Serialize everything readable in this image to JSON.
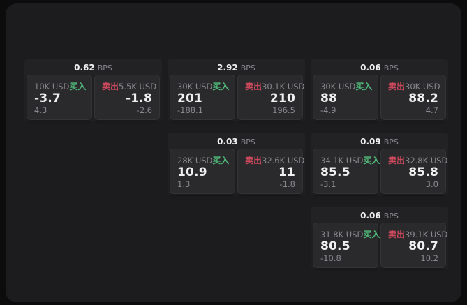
{
  "colors": {
    "page_bg": "#0c0c0d",
    "panel_bg": "#1c1c1e",
    "card_bg": "#222224",
    "tile_bg": "#2a2a2c",
    "text_primary": "#f0f0f0",
    "text_secondary": "#8a8a8f",
    "buy": "#50bd7b",
    "sell": "#c9485b"
  },
  "labels": {
    "buy": "买入",
    "sell": "卖出",
    "bps_unit": "BPS"
  },
  "cards": [
    {
      "bps": "0.62",
      "row": 1,
      "col": 1,
      "buy": {
        "amount": "10K USD",
        "price": "-3.7",
        "delta": "4.3"
      },
      "sell": {
        "amount": "5.5K USD",
        "price": "-1.8",
        "delta": "-2.6"
      }
    },
    {
      "bps": "2.92",
      "row": 1,
      "col": 2,
      "buy": {
        "amount": "30K USD",
        "price": "201",
        "delta": "-188.1"
      },
      "sell": {
        "amount": "30.1K USD",
        "price": "210",
        "delta": "196.5"
      }
    },
    {
      "bps": "0.06",
      "row": 1,
      "col": 3,
      "buy": {
        "amount": "30K USD",
        "price": "88",
        "delta": "-4.9"
      },
      "sell": {
        "amount": "30K USD",
        "price": "88.2",
        "delta": "4.7"
      }
    },
    {
      "bps": "0.03",
      "row": 2,
      "col": 2,
      "buy": {
        "amount": "28K USD",
        "price": "10.9",
        "delta": "1.3"
      },
      "sell": {
        "amount": "32.6K USD",
        "price": "11",
        "delta": "-1.8"
      }
    },
    {
      "bps": "0.09",
      "row": 2,
      "col": 3,
      "buy": {
        "amount": "34.1K USD",
        "price": "85.5",
        "delta": "-3.1"
      },
      "sell": {
        "amount": "32.8K USD",
        "price": "85.8",
        "delta": "3.0"
      }
    },
    {
      "bps": "0.06",
      "row": 3,
      "col": 3,
      "buy": {
        "amount": "31.8K USD",
        "price": "80.5",
        "delta": "-10.8"
      },
      "sell": {
        "amount": "39.1K USD",
        "price": "80.7",
        "delta": "10.2"
      }
    }
  ]
}
